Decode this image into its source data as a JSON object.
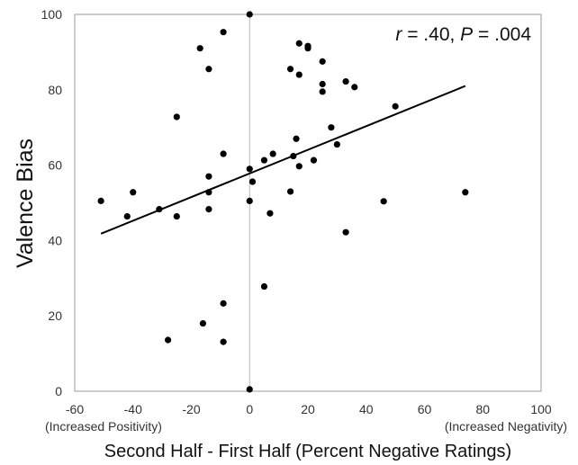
{
  "chart_data": {
    "type": "scatter",
    "title": "",
    "xlabel": "Second Half - First Half (Percent Negative Ratings)",
    "ylabel": "Valence Bias",
    "xlim": [
      -60,
      100
    ],
    "ylim": [
      0,
      100
    ],
    "x_ticks": [
      "-60",
      "-40",
      "-20",
      "0",
      "20",
      "40",
      "60",
      "80",
      "100"
    ],
    "y_ticks": [
      "0",
      "20",
      "40",
      "60",
      "80",
      "100"
    ],
    "x_sublabel_left": "(Increased Positivity)",
    "x_sublabel_right": "(Increased Negativity)",
    "annotation": {
      "r_symbol": "r",
      "r_value": " = .40, ",
      "p_symbol": "P",
      "p_value": " = .004"
    },
    "grid": false,
    "reference_line_x": 0,
    "point_color": "#000000",
    "trendline": {
      "x": [
        -51,
        74
      ],
      "y": [
        41.8,
        81
      ]
    },
    "points": [
      {
        "x": 0,
        "y": 100
      },
      {
        "x": -17,
        "y": 91
      },
      {
        "x": -9,
        "y": 95.3
      },
      {
        "x": -14,
        "y": 85.5
      },
      {
        "x": 17,
        "y": 92.3
      },
      {
        "x": 20,
        "y": 91.6
      },
      {
        "x": 20,
        "y": 91
      },
      {
        "x": 14,
        "y": 85.5
      },
      {
        "x": 17,
        "y": 84
      },
      {
        "x": 25,
        "y": 87.5
      },
      {
        "x": 25,
        "y": 81.5
      },
      {
        "x": 25,
        "y": 79.5
      },
      {
        "x": 33,
        "y": 82.2
      },
      {
        "x": 36,
        "y": 80.7
      },
      {
        "x": 50,
        "y": 75.6
      },
      {
        "x": -25,
        "y": 72.8
      },
      {
        "x": 28,
        "y": 70
      },
      {
        "x": 30,
        "y": 65.5
      },
      {
        "x": 16,
        "y": 67
      },
      {
        "x": -9,
        "y": 63
      },
      {
        "x": 8,
        "y": 63
      },
      {
        "x": 5,
        "y": 61.3
      },
      {
        "x": 15,
        "y": 62.4
      },
      {
        "x": 22,
        "y": 61.3
      },
      {
        "x": 17,
        "y": 59.7
      },
      {
        "x": 0,
        "y": 59
      },
      {
        "x": 1,
        "y": 55.6
      },
      {
        "x": -14,
        "y": 57
      },
      {
        "x": -14,
        "y": 52.8
      },
      {
        "x": 14,
        "y": 53
      },
      {
        "x": -40,
        "y": 52.8
      },
      {
        "x": -51,
        "y": 50.5
      },
      {
        "x": 0,
        "y": 50.5
      },
      {
        "x": -14,
        "y": 48.3
      },
      {
        "x": -31,
        "y": 48.3
      },
      {
        "x": 7,
        "y": 47.2
      },
      {
        "x": -25,
        "y": 46.4
      },
      {
        "x": -42,
        "y": 46.4
      },
      {
        "x": 46,
        "y": 50.4
      },
      {
        "x": 74,
        "y": 52.8
      },
      {
        "x": 33,
        "y": 42.2
      },
      {
        "x": 5,
        "y": 27.8
      },
      {
        "x": -9,
        "y": 23.3
      },
      {
        "x": -16,
        "y": 18
      },
      {
        "x": -28,
        "y": 13.6
      },
      {
        "x": -9,
        "y": 13.1
      },
      {
        "x": 0,
        "y": 0.5
      }
    ]
  }
}
